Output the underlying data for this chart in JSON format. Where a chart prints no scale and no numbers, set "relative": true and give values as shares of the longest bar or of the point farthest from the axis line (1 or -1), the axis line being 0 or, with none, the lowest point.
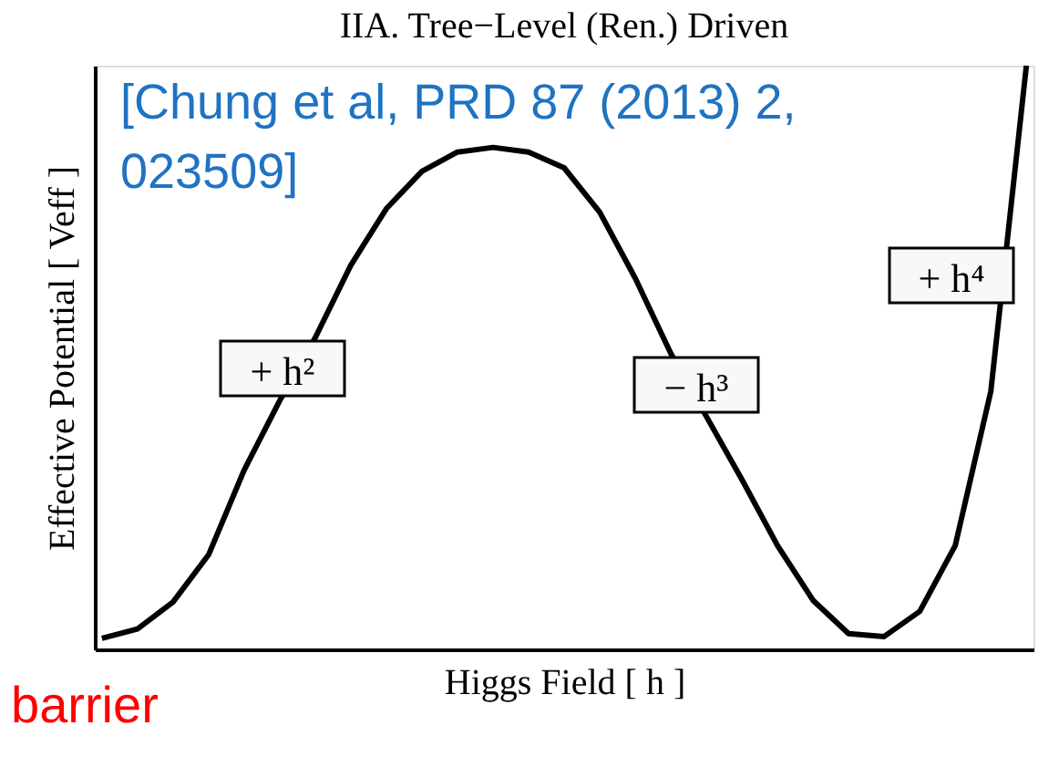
{
  "chart_data": {
    "type": "line",
    "title": "IIA.  Tree−Level (Ren.) Driven",
    "xlabel": "Higgs Field  [ h ]",
    "ylabel": "Effective Potential  [ Veff ]",
    "relative": true,
    "categories": [
      null,
      null,
      null,
      null,
      null,
      null,
      null,
      null,
      null,
      null,
      null,
      null,
      null,
      null,
      null,
      null,
      null,
      null,
      null,
      null,
      null,
      null,
      null,
      null,
      null,
      null,
      null
    ],
    "series": [
      {
        "color": "#000000",
        "values": [
          0.019,
          0.035,
          0.081,
          0.162,
          0.307,
          0.426,
          0.534,
          0.658,
          0.755,
          0.819,
          0.852,
          0.86,
          0.852,
          0.825,
          0.749,
          0.636,
          0.507,
          0.399,
          0.291,
          0.178,
          0.084,
          0.027,
          0.022,
          0.065,
          0.178,
          0.442,
          1
        ]
      }
    ],
    "annotations": [
      "[Chung et al, PRD 87 (2013) 2, 023509]",
      "+ h²",
      "− h³",
      "+ h⁴",
      "barrier"
    ],
    "marker": "none",
    "line_style": "solid",
    "grid": false
  }
}
